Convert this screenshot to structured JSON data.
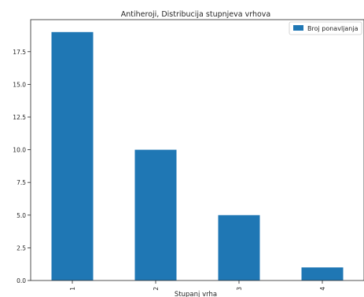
{
  "chart_data": {
    "type": "bar",
    "title": "Antiheroji, Distribucija stupnjeva vrhova",
    "xlabel": "Stupanj vrha",
    "ylabel": "",
    "categories": [
      "1",
      "2",
      "3",
      "4"
    ],
    "series": [
      {
        "name": "Broj ponavljanja",
        "values": [
          19,
          10,
          5,
          1
        ]
      }
    ],
    "ylim": [
      0,
      19.95
    ],
    "yticks": [
      "0.0",
      "2.5",
      "5.0",
      "7.5",
      "10.0",
      "12.5",
      "15.0",
      "17.5"
    ],
    "grid": false,
    "legend": "top-right",
    "bar_color": "#1f77b4"
  }
}
